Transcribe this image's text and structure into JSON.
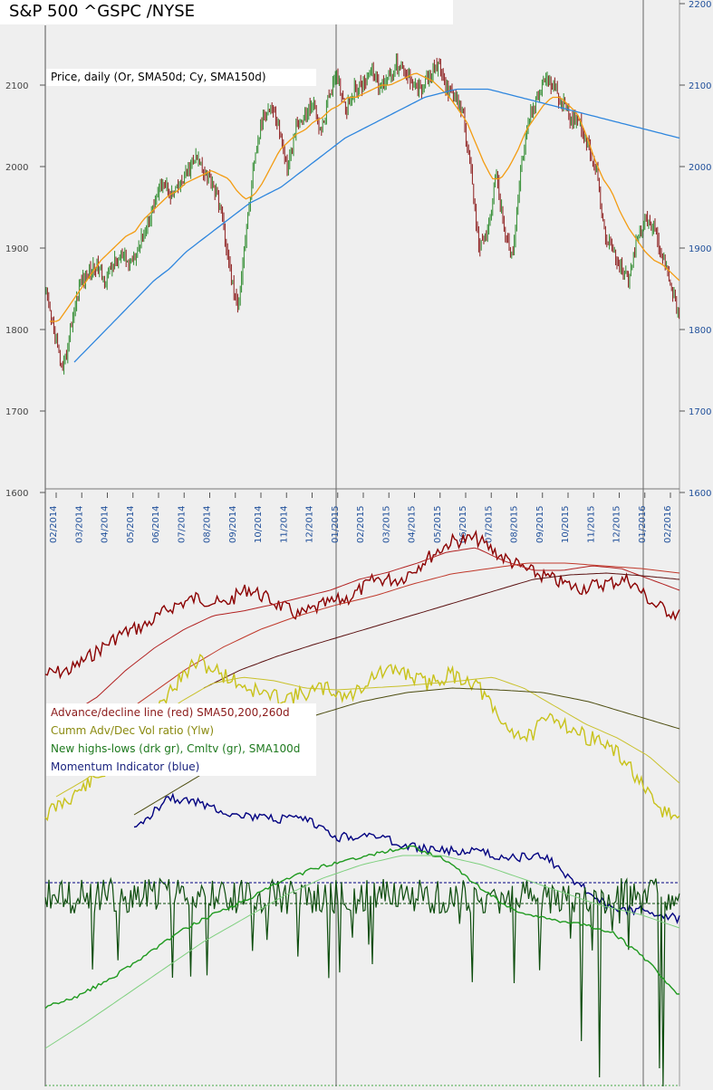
{
  "title": "S&P 500 ^GSPC /NYSE",
  "legend_price": "Price, daily (Or, SMA50d; Cy, SMA150d)",
  "legend_indicators": [
    {
      "text": "Advance/decline line (red) SMA50,200,260d",
      "color": "#8b1a1a"
    },
    {
      "text": "Cumm Adv/Dec Vol ratio (Ylw)",
      "color": "#8a8a10"
    },
    {
      "text": "New highs-lows (drk gr), Cmltv (gr), SMA100d",
      "color": "#1f7a1f"
    },
    {
      "text": "Momentum Indicator (blue)",
      "color": "#1a237e"
    }
  ],
  "colors": {
    "up_candle": "#2e8b2e",
    "down_candle": "#8b1a1a",
    "sma50": "#f39c12",
    "sma150": "#2e86de",
    "ad_line": "#8b0000",
    "vol_ratio": "#c8c21a",
    "new_hl": "#0d4d0d",
    "cum_hl": "#1f9a1f",
    "momentum": "#000080",
    "grid": "#888888"
  },
  "chart_data": {
    "type": "line",
    "price_axis_ticks": [
      "2200",
      "2100",
      "2000",
      "1900",
      "1800",
      "1700",
      "1600"
    ],
    "price_axis_values": [
      2200,
      2100,
      2000,
      1900,
      1800,
      1700,
      1600
    ],
    "date_labels": [
      "02/2014",
      "03/2014",
      "04/2014",
      "05/2014",
      "06/2014",
      "07/2014",
      "08/2014",
      "09/2014",
      "10/2014",
      "11/2014",
      "12/2014",
      "01/2015",
      "02/2015",
      "03/2015",
      "04/2015",
      "05/2015",
      "06/2015",
      "07/2015",
      "08/2015",
      "09/2015",
      "10/2015",
      "11/2015",
      "12/2015",
      "01/2016",
      "02/2016"
    ],
    "ylim": [
      1600,
      2200
    ],
    "series": [
      {
        "values": [
          1840,
          1795,
          1745,
          1805,
          1855,
          1870,
          1880,
          1860,
          1880,
          1890,
          1880,
          1900,
          1925,
          1955,
          1985,
          1965,
          1975,
          1995,
          2010,
          1995,
          1980,
          1945,
          1875,
          1825,
          1920,
          2005,
          2060,
          2075,
          2045,
          1995,
          2050,
          2060,
          2080,
          2040,
          2090,
          2110,
          2070,
          2095,
          2100,
          2120,
          2095,
          2110,
          2125,
          2115,
          2105,
          2095,
          2110,
          2125,
          2100,
          2085,
          2070,
          1990,
          1900,
          1920,
          1990,
          1925,
          1885,
          2000,
          2060,
          2085,
          2110,
          2095,
          2080,
          2060,
          2060,
          2025,
          2000,
          1920,
          1895,
          1880,
          1860,
          1915,
          1935,
          1925,
          1890,
          1855,
          1815
        ]
      },
      {
        "name": "SMA50d",
        "values": [
          1810,
          1810,
          1825,
          1840,
          1855,
          1870,
          1885,
          1895,
          1905,
          1915,
          1920,
          1935,
          1945,
          1955,
          1965,
          1970,
          1980,
          1985,
          1990,
          1995,
          1990,
          1985,
          1970,
          1960,
          1965,
          1980,
          2000,
          2020,
          2030,
          2040,
          2045,
          2055,
          2060,
          2070,
          2075,
          2085,
          2085,
          2090,
          2095,
          2100,
          2100,
          2105,
          2110,
          2115,
          2110,
          2105,
          2095,
          2085,
          2070,
          2055,
          2030,
          2005,
          1985,
          1985,
          2000,
          2020,
          2045,
          2060,
          2075,
          2085,
          2085,
          2075,
          2065,
          2040,
          2010,
          1985,
          1970,
          1945,
          1925,
          1910,
          1895,
          1885,
          1880,
          1870,
          1860
        ]
      },
      {
        "name": "SMA150d",
        "values": [
          1760,
          1780,
          1800,
          1820,
          1840,
          1860,
          1875,
          1895,
          1910,
          1925,
          1940,
          1955,
          1965,
          1975,
          1990,
          2005,
          2020,
          2035,
          2045,
          2055,
          2065,
          2075,
          2085,
          2090,
          2095,
          2095,
          2095,
          2090,
          2085,
          2080,
          2075,
          2070,
          2065,
          2060,
          2055,
          2050,
          2045,
          2040,
          2035
        ]
      }
    ]
  }
}
